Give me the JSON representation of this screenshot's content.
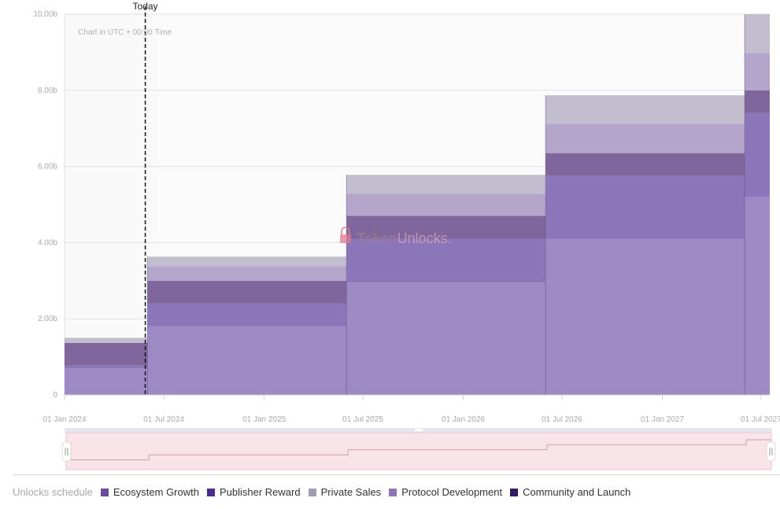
{
  "chart_data": {
    "type": "area",
    "subtype": "stacked-step",
    "x": [
      "2024-01-01",
      "2024-06-01",
      "2025-06-01",
      "2026-06-01",
      "2027-06-01",
      "2027-07-17"
    ],
    "x_tick_labels": [
      "01 Jan 2024",
      "01 Jul 2024",
      "01 Jan 2025",
      "01 Jul 2025",
      "01 Jan 2026",
      "01 Jul 2026",
      "01 Jan 2027",
      "01 Jul 2027"
    ],
    "y_tick_labels": [
      "0",
      "2.00b",
      "4.00b",
      "6.00b",
      "8.00b",
      "10.00b"
    ],
    "ylim": [
      0,
      10.0
    ],
    "y_unit": "b",
    "grid": true,
    "legend_position": "bottom-left",
    "series": [
      {
        "name": "Protocol Development",
        "color": "#9b88c4",
        "values": [
          0.7,
          1.8,
          2.95,
          4.1,
          5.2,
          5.2
        ]
      },
      {
        "name": "Ecosystem Growth",
        "color": "#8a73b9",
        "values": [
          0.07,
          0.6,
          1.15,
          1.65,
          2.2,
          2.2
        ]
      },
      {
        "name": "Community and Launch",
        "color": "#7c6399",
        "values": [
          0.6,
          0.6,
          0.6,
          0.6,
          0.6,
          0.6
        ]
      },
      {
        "name": "Private Sales",
        "color": "#b2a4ca",
        "values": [
          0.0,
          0.38,
          0.58,
          0.77,
          0.98,
          0.98
        ]
      },
      {
        "name": "Publisher Reward",
        "color": "#c1bdcc",
        "values": [
          0.13,
          0.25,
          0.5,
          0.75,
          1.02,
          1.02
        ]
      }
    ]
  },
  "today_label": "Today",
  "today_date": "2024-05-28",
  "utc_note": "Chart in UTC + 00:00 Time",
  "watermark": {
    "brand_bold": "Token",
    "brand_rest": "Unlocks."
  },
  "legend": {
    "title": "Unlocks schedule",
    "items": [
      {
        "label": "Ecosystem Growth",
        "color": "#6a4a9c"
      },
      {
        "label": "Publisher Reward",
        "color": "#4a2d8e"
      },
      {
        "label": "Private Sales",
        "color": "#a39bb5"
      },
      {
        "label": "Protocol Development",
        "color": "#8e77b6"
      },
      {
        "label": "Community and Launch",
        "color": "#2f1b5e"
      }
    ]
  },
  "navigator": {
    "fill_color": "#f7e3e8",
    "border_color": "#f2c6cf",
    "line_color": "#c9a6ae"
  }
}
